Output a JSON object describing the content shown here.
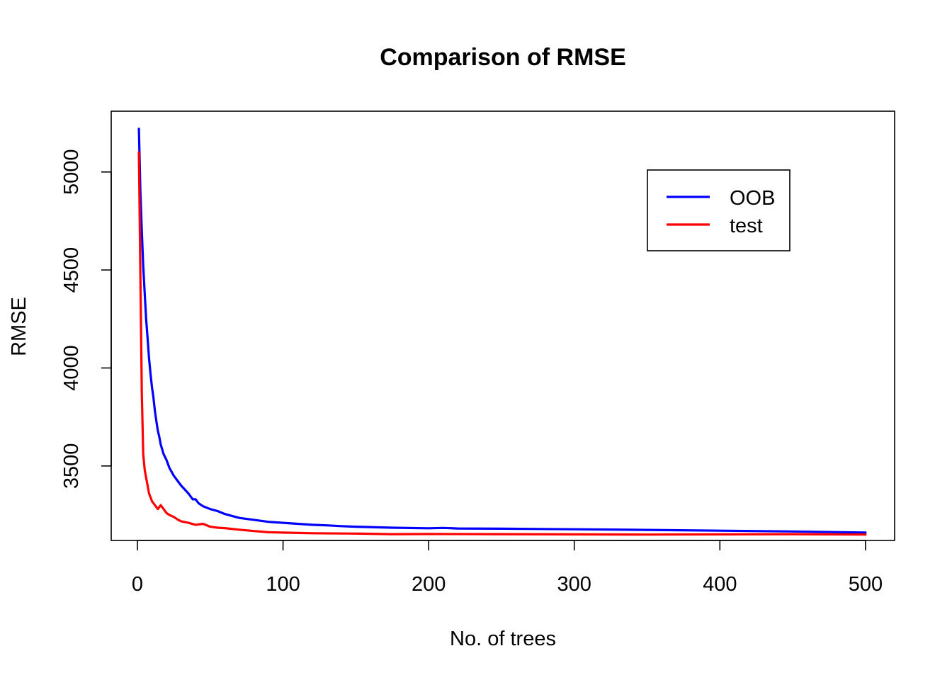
{
  "chart_data": {
    "type": "line",
    "title": "Comparison of RMSE",
    "xlabel": "No. of trees",
    "ylabel": "RMSE",
    "xlim": [
      -18,
      520
    ],
    "ylim": [
      3120,
      5310
    ],
    "xticks": [
      0,
      100,
      200,
      300,
      400,
      500
    ],
    "yticks": [
      3500,
      4000,
      4500,
      5000
    ],
    "legend_position": "top-right",
    "series": [
      {
        "name": "OOB",
        "color": "#0000ff",
        "x": [
          1,
          2,
          3,
          4,
          5,
          6,
          7,
          8,
          9,
          10,
          11,
          12,
          13,
          14,
          15,
          16,
          18,
          20,
          22,
          25,
          28,
          30,
          35,
          38,
          40,
          42,
          45,
          50,
          55,
          60,
          65,
          70,
          80,
          90,
          100,
          110,
          120,
          130,
          140,
          150,
          175,
          200,
          210,
          220,
          250,
          300,
          350,
          400,
          450,
          500
        ],
        "y": [
          5220,
          4910,
          4700,
          4520,
          4380,
          4250,
          4150,
          4050,
          3970,
          3900,
          3850,
          3780,
          3730,
          3680,
          3650,
          3610,
          3560,
          3530,
          3490,
          3450,
          3420,
          3400,
          3360,
          3330,
          3330,
          3310,
          3295,
          3280,
          3270,
          3255,
          3245,
          3235,
          3225,
          3215,
          3210,
          3205,
          3200,
          3197,
          3193,
          3190,
          3185,
          3182,
          3184,
          3181,
          3180,
          3177,
          3174,
          3170,
          3166,
          3160
        ]
      },
      {
        "name": "test",
        "color": "#ff0000",
        "x": [
          1,
          2,
          3,
          4,
          5,
          6,
          7,
          8,
          9,
          10,
          12,
          14,
          16,
          18,
          20,
          22,
          25,
          28,
          30,
          35,
          40,
          45,
          50,
          55,
          60,
          70,
          80,
          90,
          100,
          120,
          150,
          175,
          200,
          250,
          300,
          350,
          400,
          450,
          500
        ],
        "y": [
          5100,
          4500,
          3870,
          3560,
          3480,
          3440,
          3400,
          3360,
          3340,
          3320,
          3300,
          3280,
          3300,
          3280,
          3260,
          3250,
          3240,
          3225,
          3218,
          3210,
          3200,
          3205,
          3190,
          3185,
          3183,
          3175,
          3168,
          3162,
          3160,
          3157,
          3155,
          3152,
          3153,
          3152,
          3151,
          3150,
          3151,
          3152,
          3150
        ]
      }
    ]
  }
}
